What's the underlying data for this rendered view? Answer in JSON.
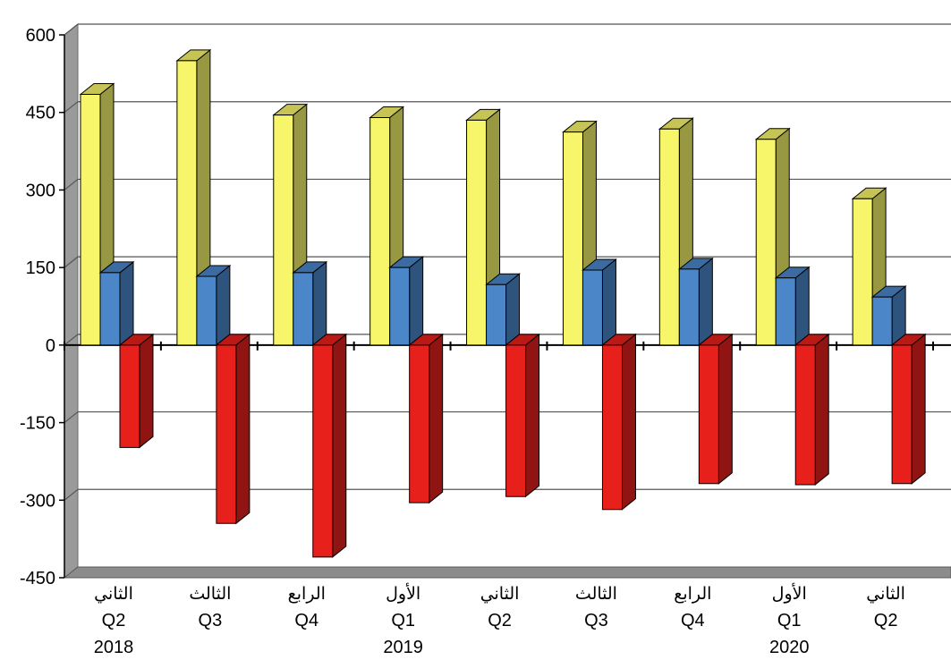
{
  "chart_data": {
    "type": "bar",
    "title": "",
    "xlabel": "",
    "ylabel": "",
    "ylim": [
      -450,
      600
    ],
    "yticks": [
      "600",
      "450",
      "300",
      "150",
      "0",
      "-150",
      "-300",
      "-450"
    ],
    "grid": true,
    "legend": "none",
    "categories": [
      {
        "quarter_ar": "الثاني",
        "quarter": "Q2",
        "year": "2018"
      },
      {
        "quarter_ar": "الثالث",
        "quarter": "Q3",
        "year": ""
      },
      {
        "quarter_ar": "الرابع",
        "quarter": "Q4",
        "year": ""
      },
      {
        "quarter_ar": "الأول",
        "quarter": "Q1",
        "year": "2019"
      },
      {
        "quarter_ar": "الثاني",
        "quarter": "Q2",
        "year": ""
      },
      {
        "quarter_ar": "الثالث",
        "quarter": "Q3",
        "year": ""
      },
      {
        "quarter_ar": "الرابع",
        "quarter": "Q4",
        "year": ""
      },
      {
        "quarter_ar": "الأول",
        "quarter": "Q1",
        "year": "2020"
      },
      {
        "quarter_ar": "الثاني",
        "quarter": "Q2",
        "year": ""
      }
    ],
    "series": [
      {
        "color": "#f7f56a",
        "values": [
          485,
          550,
          445,
          440,
          435,
          412,
          418,
          398,
          283
        ]
      },
      {
        "color": "#4a86c8",
        "values": [
          140,
          133,
          140,
          150,
          117,
          145,
          147,
          130,
          93
        ]
      },
      {
        "color": "#e8201c",
        "values": [
          -198,
          -345,
          -410,
          -305,
          -293,
          -318,
          -268,
          -270,
          -268
        ]
      }
    ]
  }
}
